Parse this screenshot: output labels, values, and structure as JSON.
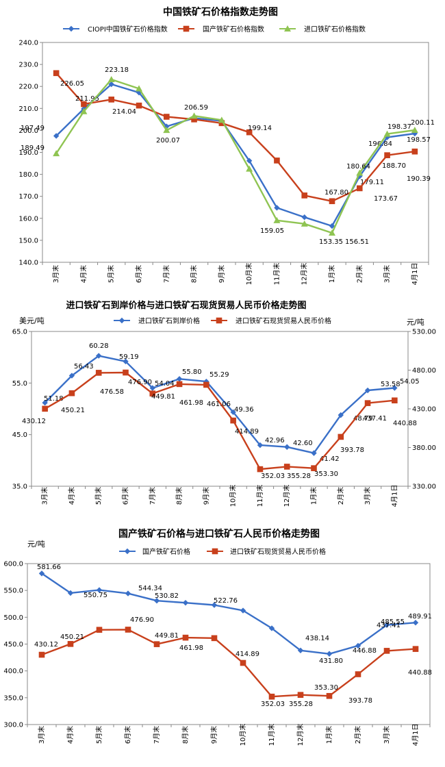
{
  "categories": [
    "3月末",
    "4月末",
    "5月末",
    "6月末",
    "7月末",
    "8月末",
    "9月末",
    "10月末",
    "11月末",
    "12月末",
    "1月末",
    "2月末",
    "3月末",
    "4月1日"
  ],
  "chart_data": [
    {
      "type": "line",
      "title": "中国铁矿石价格指数走势图",
      "ylim": [
        140,
        240
      ],
      "yticks": [
        "140.0",
        "150.0",
        "160.0",
        "170.0",
        "180.0",
        "190.0",
        "200.0",
        "210.0",
        "220.0",
        "230.0",
        "240.0"
      ],
      "legend_position": "top",
      "series": [
        {
          "name": "CIOPI中国铁矿石价格指数",
          "color": "#3a70c8",
          "marker": "diamond",
          "values": [
            197.49,
            209.8,
            221.0,
            217.2,
            201.8,
            205.6,
            204.3,
            186.2,
            164.8,
            160.5,
            156.51,
            179.11,
            196.84,
            198.57
          ],
          "labels": [
            "197.49",
            null,
            null,
            null,
            null,
            null,
            null,
            null,
            null,
            null,
            "156.51",
            "179.11",
            "196.84",
            "198.57"
          ]
        },
        {
          "name": "国产铁矿石价格指数",
          "color": "#c8401c",
          "marker": "square",
          "values": [
            226.05,
            211.95,
            214.04,
            211.3,
            206.2,
            205.0,
            203.3,
            199.14,
            186.3,
            170.4,
            167.8,
            173.67,
            188.7,
            190.39
          ],
          "labels": [
            "226.05",
            "211.95",
            "214.04",
            null,
            null,
            null,
            null,
            "199.14",
            null,
            null,
            "167.80",
            "173.67",
            "188.70",
            "190.39"
          ]
        },
        {
          "name": "进口铁矿石价格指数",
          "color": "#8fc452",
          "marker": "triangle",
          "values": [
            189.49,
            208.6,
            223.18,
            219.0,
            200.07,
            206.59,
            204.7,
            182.5,
            159.05,
            157.5,
            153.35,
            180.64,
            198.37,
            200.11
          ],
          "labels": [
            "189.49",
            null,
            "223.18",
            null,
            "200.07",
            "206.59",
            null,
            null,
            "159.05",
            null,
            "153.35",
            "180.64",
            "198.37",
            "200.11"
          ]
        }
      ]
    },
    {
      "type": "line",
      "title": "进口铁矿石到岸价格与进口铁矿石现货贸易人民币价格走势图",
      "ylabel": "美元/吨",
      "y2label": "元/吨",
      "ylim": [
        35,
        65
      ],
      "yticks": [
        "35.0",
        "45.0",
        "55.0",
        "65.0"
      ],
      "y2lim": [
        330,
        530
      ],
      "y2ticks": [
        "330.00",
        "380.00",
        "430.00",
        "480.00",
        "530.00"
      ],
      "legend_position": "top",
      "series": [
        {
          "name": "进口铁矿石到岸价格",
          "axis": "left",
          "color": "#3a70c8",
          "marker": "diamond",
          "values": [
            51.18,
            56.43,
            60.28,
            59.19,
            54.04,
            55.8,
            55.29,
            49.36,
            42.96,
            42.6,
            41.42,
            48.79,
            53.58,
            54.05
          ],
          "labels": [
            "51.18",
            "56.43",
            "60.28",
            "59.19",
            "54.04",
            "55.80",
            "55.29",
            "49.36",
            "42.96",
            "42.60",
            "41.42",
            "48.79",
            "53.58",
            "54.05"
          ]
        },
        {
          "name": "进口铁矿石现货贸易人民币价格",
          "axis": "right",
          "color": "#c8401c",
          "marker": "square",
          "values": [
            430.12,
            450.21,
            476.58,
            476.9,
            449.81,
            461.98,
            461.06,
            414.89,
            352.03,
            355.28,
            353.3,
            393.78,
            437.41,
            440.88
          ],
          "labels": [
            "430.12",
            "450.21",
            "476.58",
            "476.90",
            "449.81",
            "461.98",
            "461.06",
            "414.89",
            "352.03",
            "355.28",
            "353.30",
            "393.78",
            "437.41",
            "440.88"
          ]
        }
      ]
    },
    {
      "type": "line",
      "title": "国产铁矿石价格与进口铁矿石人民币价格走势图",
      "ylabel": "元/吨",
      "ylim": [
        300,
        600
      ],
      "yticks": [
        "300.0",
        "350.0",
        "400.0",
        "450.0",
        "500.0",
        "550.0",
        "600.0"
      ],
      "legend_position": "top",
      "series": [
        {
          "name": "国产铁矿石价格",
          "color": "#3a70c8",
          "marker": "diamond",
          "values": [
            581.66,
            545.2,
            550.75,
            544.34,
            530.82,
            527.0,
            522.76,
            512.5,
            479.5,
            438.14,
            431.8,
            446.88,
            485.55,
            489.91
          ],
          "labels": [
            "581.66",
            null,
            "550.75",
            "544.34",
            "530.82",
            null,
            "522.76",
            null,
            null,
            "438.14",
            "431.80",
            "446.88",
            "485.55",
            "489.91"
          ]
        },
        {
          "name": "进口铁矿石现货贸易人民币价格",
          "color": "#c8401c",
          "marker": "square",
          "values": [
            430.12,
            450.21,
            476.58,
            476.9,
            449.81,
            461.98,
            461.06,
            414.89,
            352.03,
            355.28,
            353.3,
            393.78,
            437.41,
            440.88
          ],
          "labels": [
            "430.12",
            "450.21",
            null,
            "476.90",
            "449.81",
            "461.98",
            null,
            "414.89",
            "352.03",
            "355.28",
            "353.30",
            "393.78",
            "437.41",
            "440.88"
          ]
        }
      ]
    }
  ]
}
